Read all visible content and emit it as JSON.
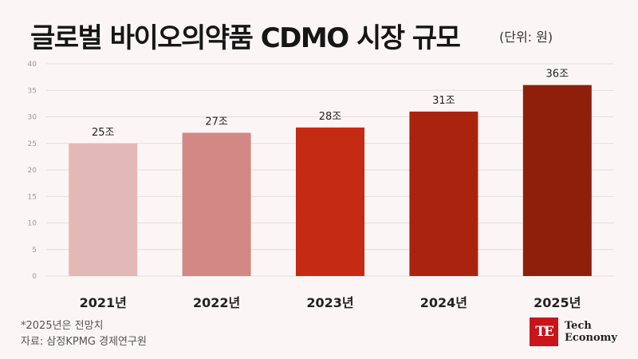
{
  "title": "글로벌 바이오의약품 CDMO 시장 규모",
  "unit_label": "(단위: 원)",
  "chart_data": {
    "type": "bar",
    "categories": [
      "2021년",
      "2022년",
      "2023년",
      "2024년",
      "2025년"
    ],
    "values": [
      25,
      27,
      28,
      31,
      36
    ],
    "data_labels": [
      "25조",
      "27조",
      "28조",
      "31조",
      "36조"
    ],
    "bar_colors": [
      "#e3b9b7",
      "#d28884",
      "#c52a12",
      "#a9230f",
      "#8e1f0a"
    ],
    "ylim": [
      0,
      40
    ],
    "yticks": [
      0,
      5,
      10,
      15,
      20,
      25,
      30,
      35,
      40
    ],
    "grid": true,
    "title": "",
    "xlabel": "",
    "ylabel": ""
  },
  "footnote": {
    "line1": "*2025년은 전망치",
    "line2": "자료: 삼정KPMG 경제연구원"
  },
  "logo": {
    "mark": "TE",
    "line1": "Tech",
    "line2": "Economy"
  },
  "colors": {
    "background": "#fbf6f5",
    "grid": "#e6dcda",
    "brand": "#c8141b"
  }
}
